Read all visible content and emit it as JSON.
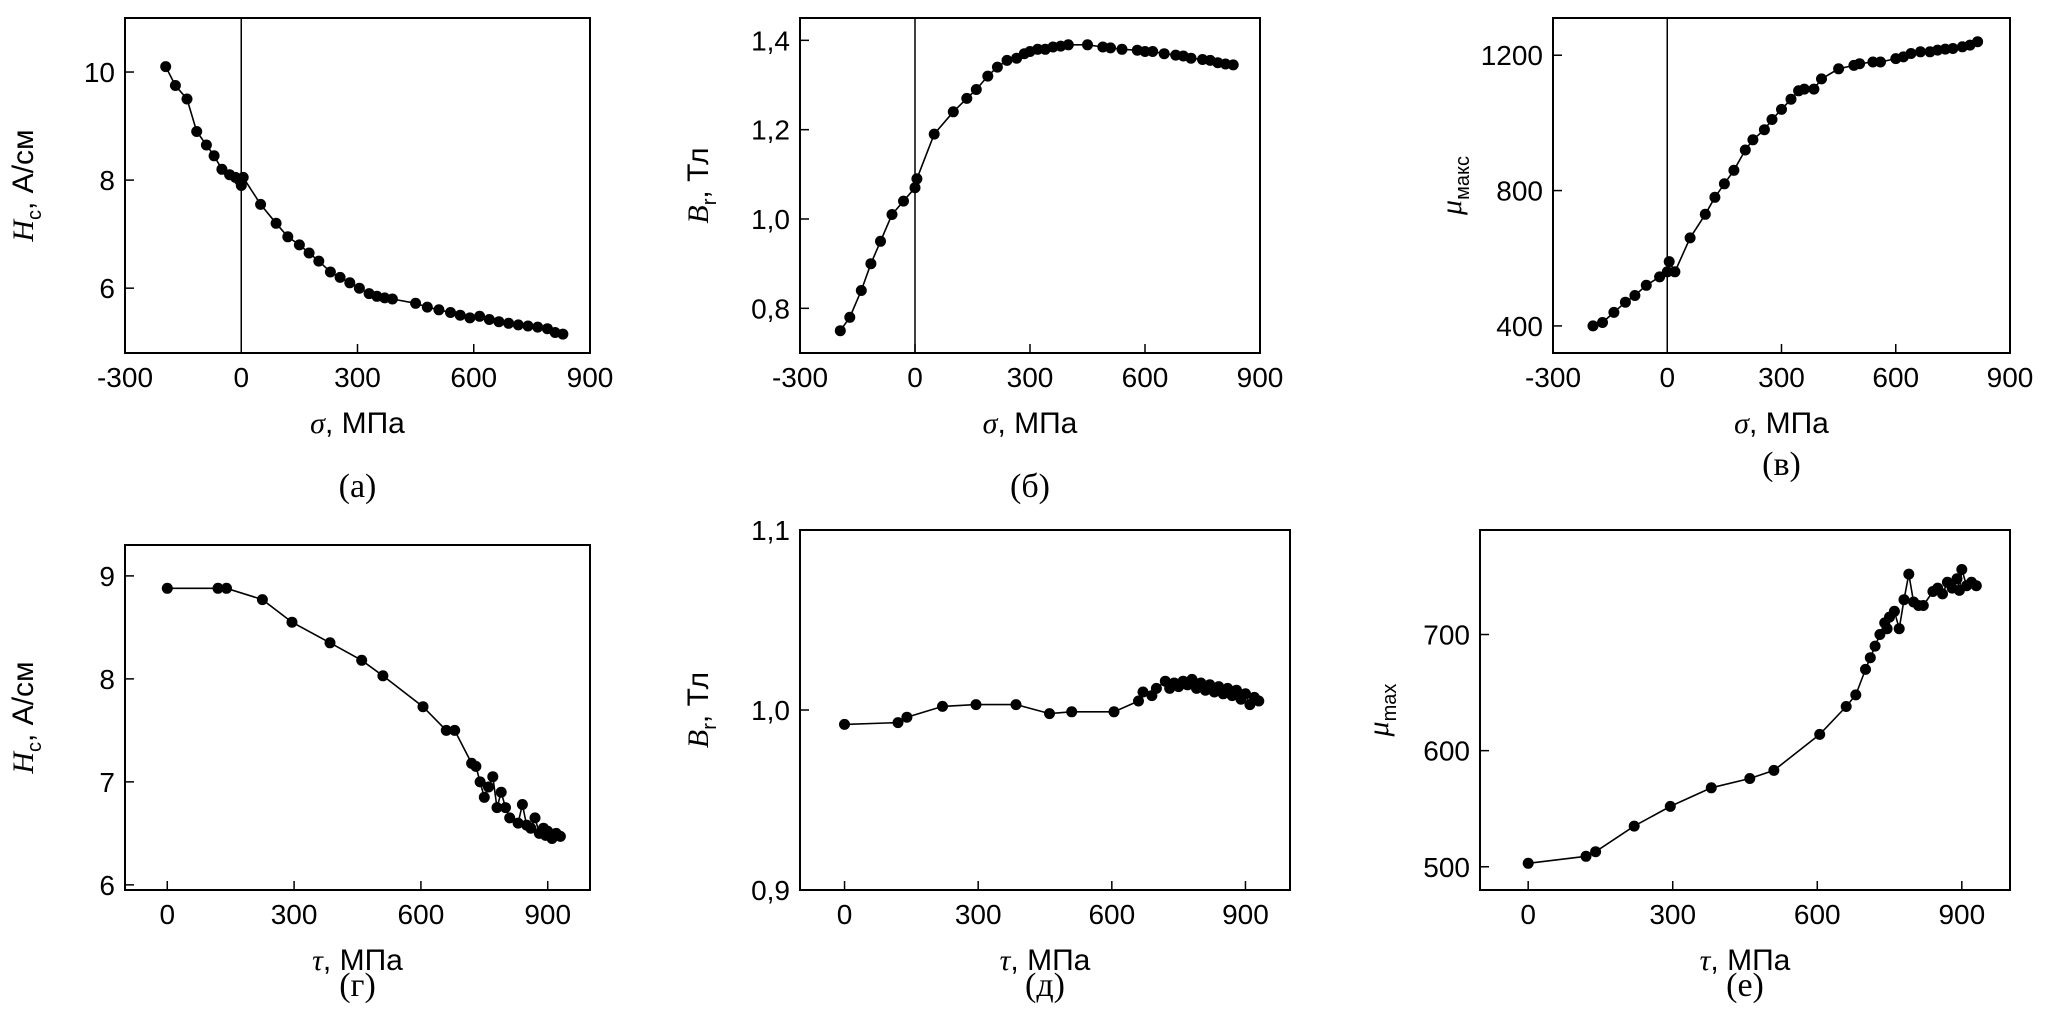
{
  "chart_data": [
    {
      "id": "a",
      "type": "line",
      "caption": "(а)",
      "xlabel": {
        "sym": "σ",
        "rest": ", МПа"
      },
      "ylabel": {
        "sym": "H",
        "sub": "c",
        "rest": ", А/см"
      },
      "xlim": [
        -300,
        900
      ],
      "ylim": [
        4.8,
        11
      ],
      "xticks": [
        -300,
        0,
        300,
        600,
        900
      ],
      "xtick_labels": [
        "-300",
        "0",
        "300",
        "600",
        "900"
      ],
      "yticks": [
        6,
        8,
        10
      ],
      "ytick_labels": [
        "6",
        "8",
        "10"
      ],
      "zero_line": true,
      "series": [
        {
          "x": [
            -195,
            -170,
            -140,
            -115,
            -90,
            -70,
            -50,
            -30,
            -15,
            -5,
            0,
            5,
            50,
            90,
            120,
            150,
            175,
            200,
            230,
            255,
            280,
            305,
            330,
            350,
            370,
            390,
            450,
            480,
            510,
            540,
            565,
            590,
            615,
            640,
            665,
            690,
            715,
            740,
            765,
            790,
            810,
            830
          ],
          "y": [
            10.1,
            9.75,
            9.5,
            8.9,
            8.65,
            8.45,
            8.2,
            8.1,
            8.05,
            8.0,
            7.9,
            8.05,
            7.55,
            7.2,
            6.95,
            6.8,
            6.65,
            6.5,
            6.3,
            6.2,
            6.1,
            6.0,
            5.9,
            5.85,
            5.82,
            5.8,
            5.72,
            5.65,
            5.6,
            5.55,
            5.5,
            5.45,
            5.48,
            5.42,
            5.38,
            5.35,
            5.32,
            5.3,
            5.28,
            5.25,
            5.18,
            5.15
          ]
        }
      ]
    },
    {
      "id": "b",
      "type": "line",
      "caption": "(б)",
      "xlabel": {
        "sym": "σ",
        "rest": ", МПа"
      },
      "ylabel": {
        "sym": "B",
        "sub": "r",
        "rest": ", Тл"
      },
      "xlim": [
        -300,
        900
      ],
      "ylim": [
        0.7,
        1.45
      ],
      "xticks": [
        -300,
        0,
        300,
        600,
        900
      ],
      "xtick_labels": [
        "-300",
        "0",
        "300",
        "600",
        "900"
      ],
      "yticks": [
        0.8,
        1.0,
        1.2,
        1.4
      ],
      "ytick_labels": [
        "0,8",
        "1,0",
        "1,2",
        "1,4"
      ],
      "zero_line": true,
      "series": [
        {
          "x": [
            -195,
            -170,
            -140,
            -115,
            -90,
            -60,
            -30,
            0,
            5,
            50,
            100,
            135,
            160,
            190,
            215,
            240,
            265,
            285,
            300,
            320,
            340,
            360,
            380,
            400,
            450,
            490,
            510,
            540,
            580,
            600,
            620,
            650,
            680,
            700,
            720,
            750,
            770,
            790,
            810,
            830
          ],
          "y": [
            0.75,
            0.78,
            0.84,
            0.9,
            0.95,
            1.01,
            1.04,
            1.07,
            1.09,
            1.19,
            1.24,
            1.27,
            1.29,
            1.32,
            1.34,
            1.355,
            1.36,
            1.37,
            1.375,
            1.38,
            1.38,
            1.385,
            1.387,
            1.39,
            1.39,
            1.385,
            1.383,
            1.38,
            1.378,
            1.375,
            1.375,
            1.37,
            1.367,
            1.365,
            1.36,
            1.357,
            1.355,
            1.35,
            1.347,
            1.345
          ]
        }
      ]
    },
    {
      "id": "c",
      "type": "line",
      "caption": "(в)",
      "xlabel": {
        "sym": "σ",
        "rest": ", МПа"
      },
      "ylabel": {
        "sym": "μ",
        "sub": "макс",
        "rest": ""
      },
      "xlim": [
        -300,
        900
      ],
      "ylim": [
        320,
        1310
      ],
      "xticks": [
        -300,
        0,
        300,
        600,
        900
      ],
      "xtick_labels": [
        "-300",
        "0",
        "300",
        "600",
        "900"
      ],
      "yticks": [
        400,
        800,
        1200
      ],
      "ytick_labels": [
        "400",
        "800",
        "1200"
      ],
      "zero_line": true,
      "series": [
        {
          "x": [
            -195,
            -170,
            -140,
            -110,
            -85,
            -55,
            -20,
            0,
            5,
            20,
            60,
            100,
            125,
            150,
            175,
            205,
            225,
            255,
            275,
            300,
            325,
            345,
            360,
            385,
            405,
            450,
            490,
            505,
            540,
            560,
            600,
            620,
            640,
            665,
            690,
            710,
            730,
            750,
            775,
            795,
            815
          ],
          "y": [
            400,
            410,
            440,
            470,
            490,
            520,
            545,
            560,
            590,
            560,
            660,
            730,
            780,
            820,
            860,
            920,
            950,
            980,
            1010,
            1040,
            1070,
            1095,
            1100,
            1100,
            1130,
            1160,
            1170,
            1175,
            1180,
            1180,
            1190,
            1195,
            1205,
            1210,
            1210,
            1215,
            1218,
            1220,
            1225,
            1230,
            1240
          ]
        }
      ]
    },
    {
      "id": "d",
      "type": "line",
      "caption": "(г)",
      "xlabel": {
        "sym": "τ",
        "rest": ", МПа"
      },
      "ylabel": {
        "sym": "H",
        "sub": "c",
        "rest": ", А/см"
      },
      "xlim": [
        -100,
        1000
      ],
      "ylim": [
        5.95,
        9.3
      ],
      "xticks": [
        0,
        300,
        600,
        900
      ],
      "xtick_labels": [
        "0",
        "300",
        "600",
        "900"
      ],
      "yticks": [
        6,
        7,
        8,
        9
      ],
      "ytick_labels": [
        "6",
        "7",
        "8",
        "9"
      ],
      "zero_line": false,
      "series": [
        {
          "x": [
            0,
            120,
            140,
            225,
            295,
            385,
            460,
            510,
            605,
            660,
            680,
            720,
            730,
            740,
            750,
            760,
            770,
            780,
            790,
            800,
            810,
            830,
            840,
            850,
            860,
            870,
            880,
            890,
            895,
            900,
            910,
            920,
            930
          ],
          "y": [
            8.88,
            8.88,
            8.88,
            8.77,
            8.55,
            8.35,
            8.18,
            8.03,
            7.73,
            7.5,
            7.5,
            7.18,
            7.15,
            7.0,
            6.85,
            6.95,
            7.05,
            6.75,
            6.9,
            6.75,
            6.65,
            6.6,
            6.78,
            6.58,
            6.55,
            6.65,
            6.5,
            6.55,
            6.48,
            6.52,
            6.45,
            6.5,
            6.47
          ]
        }
      ]
    },
    {
      "id": "e",
      "type": "line",
      "caption": "(д)",
      "xlabel": {
        "sym": "τ",
        "rest": ", МПа"
      },
      "ylabel": {
        "sym": "B",
        "sub": "r",
        "rest": ", Тл"
      },
      "xlim": [
        -100,
        1000
      ],
      "ylim": [
        0.9,
        1.1
      ],
      "xticks": [
        0,
        300,
        600,
        900
      ],
      "xtick_labels": [
        "0",
        "300",
        "600",
        "900"
      ],
      "yticks": [
        0.9,
        1.0,
        1.1
      ],
      "ytick_labels": [
        "0,9",
        "1,0",
        "1,1"
      ],
      "zero_line": false,
      "series": [
        {
          "x": [
            0,
            120,
            140,
            220,
            295,
            385,
            460,
            510,
            605,
            660,
            670,
            690,
            700,
            720,
            730,
            740,
            750,
            760,
            770,
            780,
            790,
            800,
            810,
            820,
            830,
            840,
            850,
            860,
            870,
            880,
            890,
            900,
            910,
            920,
            930
          ],
          "y": [
            0.992,
            0.993,
            0.996,
            1.002,
            1.003,
            1.003,
            0.998,
            0.999,
            0.999,
            1.005,
            1.01,
            1.008,
            1.012,
            1.016,
            1.012,
            1.015,
            1.013,
            1.016,
            1.014,
            1.017,
            1.012,
            1.015,
            1.011,
            1.014,
            1.01,
            1.013,
            1.009,
            1.012,
            1.008,
            1.011,
            1.006,
            1.009,
            1.003,
            1.007,
            1.005
          ]
        }
      ]
    },
    {
      "id": "f",
      "type": "line",
      "caption": "(е)",
      "xlabel": {
        "sym": "τ",
        "rest": ", МПа"
      },
      "ylabel": {
        "sym": "μ",
        "sub": "max",
        "rest": ""
      },
      "xlim": [
        -100,
        1000
      ],
      "ylim": [
        480,
        790
      ],
      "xticks": [
        0,
        300,
        600,
        900
      ],
      "xtick_labels": [
        "0",
        "300",
        "600",
        "900"
      ],
      "yticks": [
        500,
        600,
        700
      ],
      "ytick_labels": [
        "500",
        "600",
        "700"
      ],
      "zero_line": false,
      "series": [
        {
          "x": [
            0,
            120,
            140,
            220,
            295,
            380,
            460,
            510,
            605,
            660,
            680,
            700,
            710,
            720,
            730,
            740,
            745,
            750,
            760,
            770,
            780,
            790,
            800,
            810,
            820,
            840,
            850,
            860,
            870,
            880,
            890,
            895,
            900,
            910,
            920,
            930
          ],
          "y": [
            503,
            509,
            513,
            535,
            552,
            568,
            576,
            583,
            614,
            638,
            648,
            670,
            680,
            690,
            700,
            710,
            705,
            715,
            720,
            705,
            730,
            752,
            728,
            725,
            725,
            737,
            740,
            735,
            745,
            740,
            748,
            738,
            756,
            742,
            745,
            742
          ]
        }
      ]
    }
  ]
}
